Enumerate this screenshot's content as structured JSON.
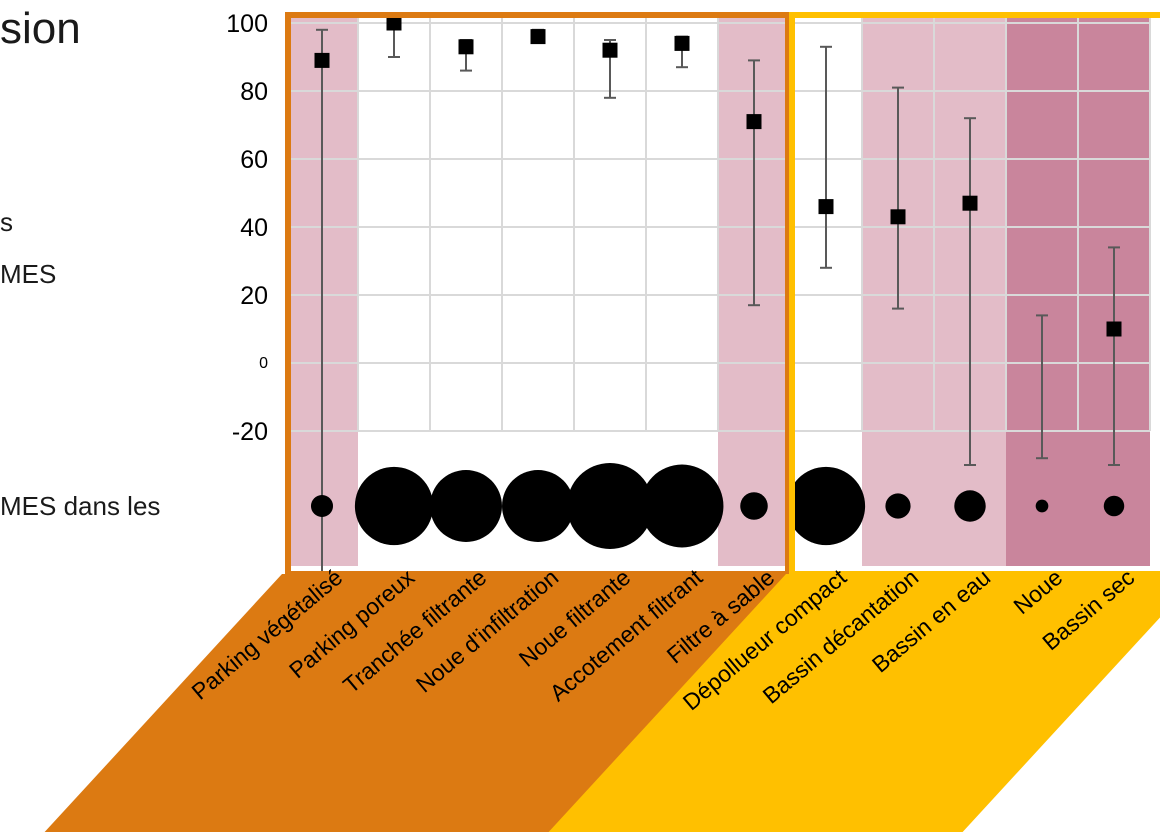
{
  "slide": {
    "title_fragment": "sion",
    "text_fragment_1": "s",
    "text_fragment_2": "MES",
    "text_fragment_3": "MES dans les"
  },
  "colors": {
    "light_band": "#e3bcc8",
    "dark_band": "#c9859c",
    "orange": "#dc7a12",
    "yellow": "#ffc000",
    "marker": "#000000",
    "error_bar": "#595959",
    "grid": "#d9d9d9"
  },
  "chart_data": {
    "type": "scatter",
    "title": "",
    "xlabel": "",
    "ylabel": "",
    "ylim": [
      -30,
      100
    ],
    "yticks": [
      "100",
      "80",
      "60",
      "40",
      "20",
      "0",
      "-20"
    ],
    "grid": true,
    "categories": [
      "Parking végétalisé",
      "Parking poreux",
      "Tranchée filtrante",
      "Noue d'infiltration",
      "Noue filtrante",
      "Accotement filtrant",
      "Filtre à sable",
      "Dépollueur compact",
      "Bassin décantation",
      "Bassin en eau",
      "Noue",
      "Bassin sec"
    ],
    "groups": [
      {
        "categories": [
          0,
          1,
          2,
          3,
          4,
          5,
          6
        ],
        "color": "orange"
      },
      {
        "categories": [
          7,
          8,
          9,
          10,
          11
        ],
        "color": "yellow"
      }
    ],
    "band_shading": [
      "light",
      "none",
      "none",
      "none",
      "none",
      "none",
      "light",
      "none",
      "light",
      "light",
      "dark",
      "dark"
    ],
    "series": [
      {
        "values": [
          89,
          100,
          93,
          96,
          92,
          94,
          71,
          46,
          43,
          47,
          null,
          10
        ],
        "error_low": [
          -63,
          90,
          86,
          95,
          78,
          87,
          17,
          28,
          16,
          -30,
          -28,
          -30
        ],
        "error_high": [
          98,
          100,
          95,
          98,
          95,
          96,
          89,
          93,
          81,
          72,
          14,
          34
        ]
      }
    ],
    "sample_size_relative": [
      0.18,
      0.9,
      0.82,
      0.82,
      1.0,
      0.96,
      0.25,
      0.9,
      0.22,
      0.3,
      0.06,
      0.16
    ]
  }
}
